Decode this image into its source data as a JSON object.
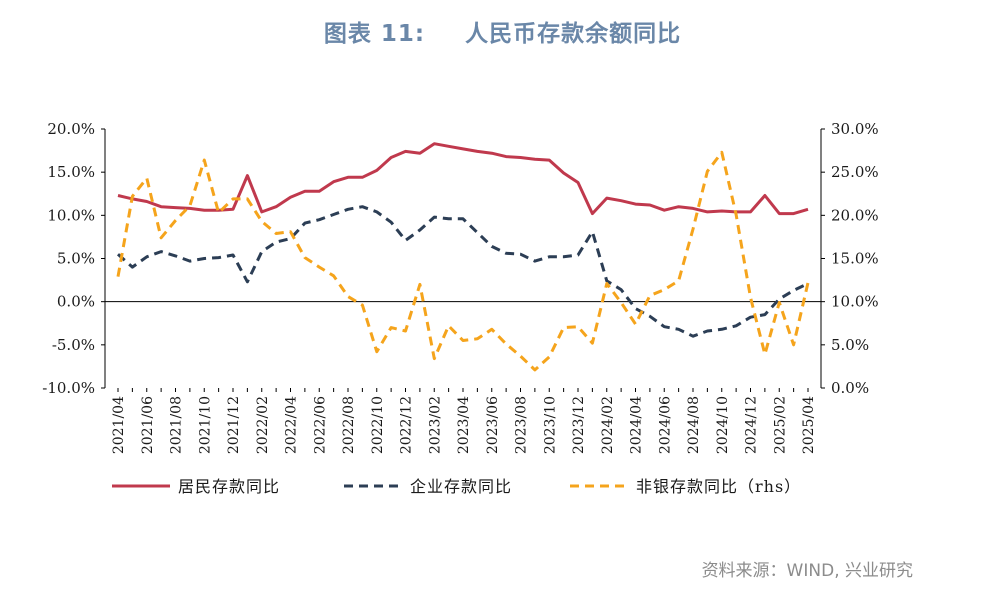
{
  "title_prefix": "图表  11:",
  "title_text": "人民币存款余额同比",
  "source": "资料来源：WIND, 兴业研究",
  "chart_data": {
    "type": "line",
    "x": [
      "2021/04",
      "2021/05",
      "2021/06",
      "2021/07",
      "2021/08",
      "2021/09",
      "2021/10",
      "2021/11",
      "2021/12",
      "2022/01",
      "2022/02",
      "2022/03",
      "2022/04",
      "2022/05",
      "2022/06",
      "2022/07",
      "2022/08",
      "2022/09",
      "2022/10",
      "2022/11",
      "2022/12",
      "2023/01",
      "2023/02",
      "2023/03",
      "2023/04",
      "2023/05",
      "2023/06",
      "2023/07",
      "2023/08",
      "2023/09",
      "2023/10",
      "2023/11",
      "2023/12",
      "2024/01",
      "2024/02",
      "2024/03",
      "2024/04",
      "2024/05",
      "2024/06",
      "2024/07",
      "2024/08",
      "2024/09",
      "2024/10",
      "2024/11",
      "2024/12",
      "2025/01",
      "2025/02",
      "2025/03",
      "2025/04"
    ],
    "x_tick_labels": [
      "2021/04",
      "2021/06",
      "2021/08",
      "2021/10",
      "2021/12",
      "2022/02",
      "2022/04",
      "2022/06",
      "2022/08",
      "2022/10",
      "2022/12",
      "2023/02",
      "2023/04",
      "2023/06",
      "2023/08",
      "2023/10",
      "2023/12",
      "2024/02",
      "2024/04",
      "2024/06",
      "2024/08",
      "2024/10",
      "2024/12",
      "2025/02",
      "2025/04"
    ],
    "y_left": {
      "ylim": [
        -10,
        20
      ],
      "ticks": [
        "-10.0%",
        "-5.0%",
        "0.0%",
        "5.0%",
        "10.0%",
        "15.0%",
        "20.0%"
      ]
    },
    "y_right": {
      "ylim": [
        0,
        30
      ],
      "ticks": [
        "0.0%",
        "5.0%",
        "10.0%",
        "15.0%",
        "20.0%",
        "25.0%",
        "30.0%"
      ]
    },
    "grid": false,
    "legend_position": "bottom",
    "series": [
      {
        "name": "居民存款同比",
        "axis": "left",
        "color": "#c0394d",
        "style": "solid",
        "values": [
          12.3,
          11.9,
          11.6,
          11.0,
          10.9,
          10.8,
          10.6,
          10.6,
          10.7,
          14.6,
          10.4,
          11.0,
          12.1,
          12.8,
          12.8,
          13.9,
          14.4,
          14.4,
          15.2,
          16.7,
          17.4,
          17.2,
          18.3,
          18.0,
          17.7,
          17.4,
          17.2,
          16.8,
          16.7,
          16.5,
          16.4,
          14.9,
          13.8,
          10.2,
          12.0,
          11.7,
          11.3,
          11.2,
          10.6,
          11.0,
          10.8,
          10.4,
          10.5,
          10.4,
          10.4,
          12.3,
          10.2,
          10.2,
          10.7
        ]
      },
      {
        "name": "企业存款同比",
        "axis": "left",
        "color": "#2c3e55",
        "style": "dashed",
        "values": [
          5.5,
          4.0,
          5.2,
          5.8,
          5.3,
          4.7,
          5.0,
          5.1,
          5.4,
          2.3,
          5.8,
          6.9,
          7.3,
          9.1,
          9.5,
          10.1,
          10.7,
          11.0,
          10.4,
          9.2,
          7.1,
          8.3,
          9.8,
          9.6,
          9.6,
          8.0,
          6.4,
          5.6,
          5.5,
          4.7,
          5.2,
          5.2,
          5.4,
          8.1,
          2.4,
          1.4,
          -0.8,
          -1.7,
          -2.9,
          -3.2,
          -4.0,
          -3.4,
          -3.2,
          -2.8,
          -1.8,
          -1.5,
          0.3,
          1.3,
          2.1
        ]
      },
      {
        "name": "非银存款同比（rhs）",
        "axis": "right",
        "color": "#f5a41c",
        "style": "dashed",
        "values": [
          12.9,
          22.2,
          24.3,
          17.4,
          19.4,
          21.1,
          26.4,
          20.3,
          21.9,
          21.9,
          19.3,
          17.9,
          18.1,
          15.1,
          14.0,
          13.0,
          10.6,
          9.6,
          4.2,
          7.0,
          6.6,
          12.0,
          3.4,
          7.2,
          5.5,
          5.7,
          6.8,
          5.1,
          3.7,
          2.1,
          3.6,
          7.0,
          7.1,
          5.2,
          12.1,
          9.9,
          7.4,
          10.7,
          11.4,
          12.4,
          18.4,
          25.1,
          27.3,
          20.1,
          10.5,
          3.9,
          9.9,
          5.0,
          12.2
        ]
      }
    ]
  }
}
